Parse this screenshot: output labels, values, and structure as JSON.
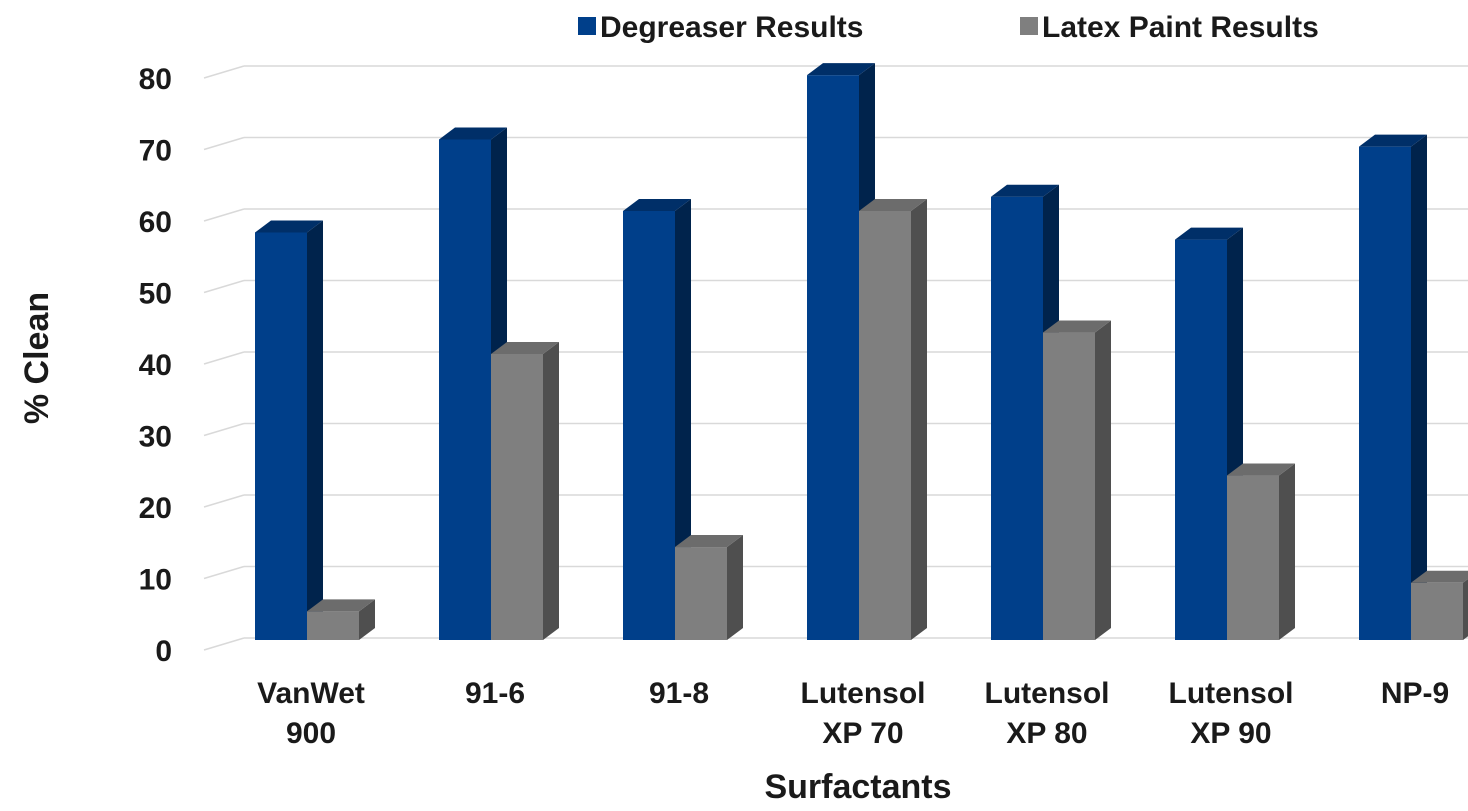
{
  "chart_data": {
    "type": "bar",
    "title": "",
    "xlabel": "Surfactants",
    "ylabel": "% Clean",
    "ylim": [
      0,
      80
    ],
    "yticks": [
      "0",
      "10",
      "20",
      "30",
      "40",
      "50",
      "60",
      "70",
      "80"
    ],
    "categories": [
      [
        "VanWet",
        "900"
      ],
      [
        "91-6"
      ],
      [
        "91-8"
      ],
      [
        "Lutensol",
        "XP 70"
      ],
      [
        "Lutensol",
        "XP 80"
      ],
      [
        "Lutensol",
        "XP 90"
      ],
      [
        "NP-9"
      ]
    ],
    "series": [
      {
        "name": "Degreaser Results",
        "color": "#003f8a",
        "values": [
          57,
          70,
          60,
          79,
          62,
          56,
          69
        ]
      },
      {
        "name": "Latex Paint Results",
        "color": "#7f7f7f",
        "values": [
          4,
          40,
          13,
          60,
          43,
          23,
          8
        ]
      }
    ],
    "legend_position": "top",
    "grid": true,
    "style": "3d-bars"
  }
}
